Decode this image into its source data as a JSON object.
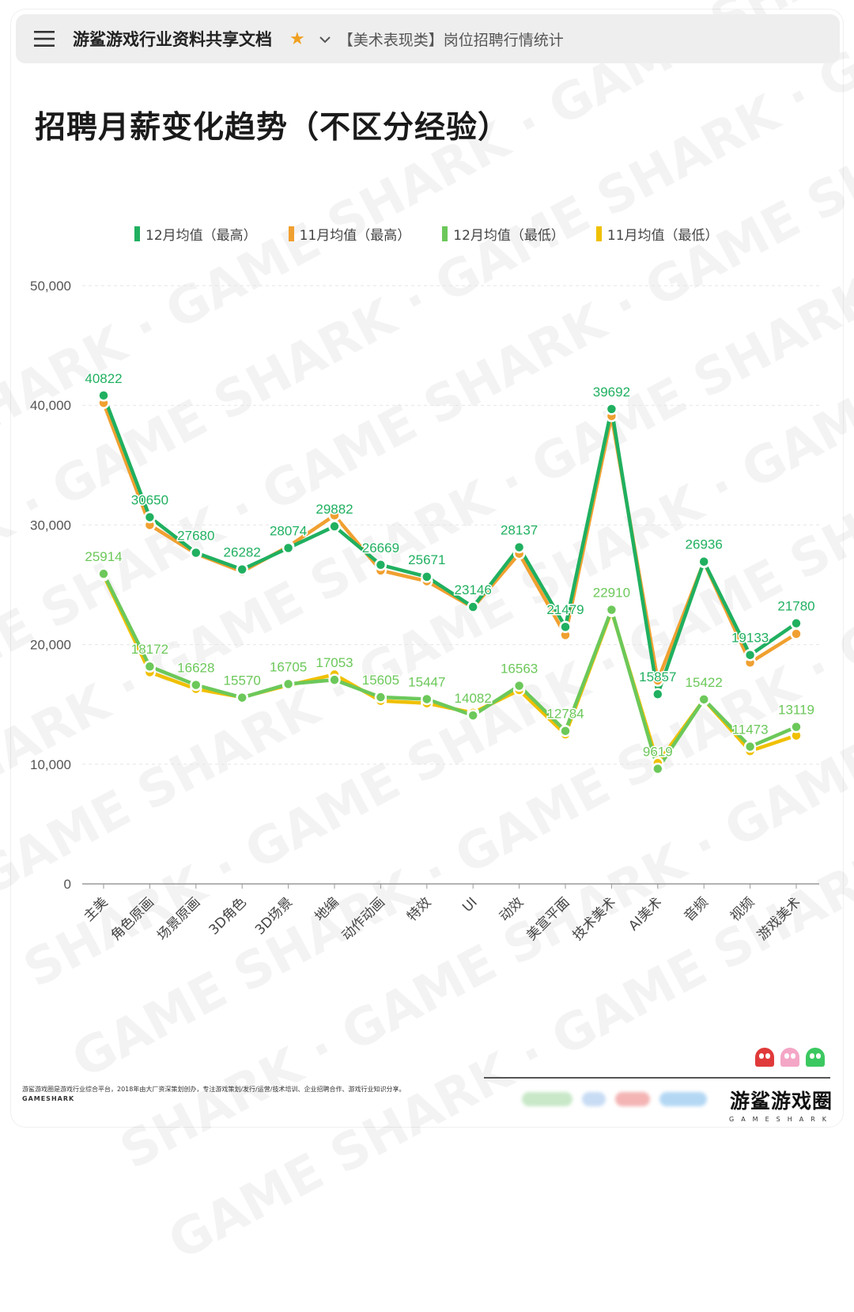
{
  "header": {
    "doc_title": "游鲨游戏行业资料共享文档",
    "breadcrumb": "【美术表现类】岗位招聘行情统计"
  },
  "page": {
    "title": "招聘月薪变化趋势（不区分经验）"
  },
  "colors": {
    "dec_high": "#20b060",
    "nov_high": "#f0a030",
    "dec_low": "#6cc85a",
    "nov_low": "#f0c000",
    "grid": "#e6e6e6",
    "axis": "#999999"
  },
  "chart_data": {
    "type": "line",
    "title": "招聘月薪变化趋势（不区分经验）",
    "xlabel": "",
    "ylabel": "",
    "ylim": [
      0,
      50000
    ],
    "y_ticks": [
      0,
      10000,
      20000,
      30000,
      40000,
      50000
    ],
    "y_tick_labels": [
      "0",
      "10,000",
      "20,000",
      "30,000",
      "40,000",
      "50,000"
    ],
    "legend_position": "top",
    "categories": [
      "主美",
      "角色原画",
      "场景原画",
      "3D角色",
      "3D场景",
      "地编",
      "动作动画",
      "特效",
      "UI",
      "动效",
      "美宣平面",
      "技术美术",
      "AI美术",
      "音频",
      "视频",
      "游戏美术"
    ],
    "series": [
      {
        "name": "12月均值（最高）",
        "color": "#20b060",
        "values": [
          40822,
          30650,
          27680,
          26282,
          28074,
          29882,
          26669,
          25671,
          23146,
          28137,
          21479,
          39692,
          15857,
          26936,
          19133,
          21780
        ],
        "labeled": true
      },
      {
        "name": "11月均值（最高）",
        "color": "#f0a030",
        "values": [
          40200,
          30000,
          27600,
          26100,
          28200,
          30800,
          26200,
          25300,
          23100,
          27600,
          20800,
          39100,
          17000,
          26900,
          18500,
          20900
        ],
        "labeled": false
      },
      {
        "name": "12月均值（最低）",
        "color": "#6cc85a",
        "values": [
          25914,
          18172,
          16628,
          15570,
          16705,
          17053,
          15605,
          15447,
          14082,
          16563,
          12784,
          22910,
          9619,
          15422,
          11473,
          13119
        ],
        "labeled": true
      },
      {
        "name": "11月均值（最低）",
        "color": "#f0c000",
        "values": [
          25800,
          17700,
          16300,
          15600,
          16600,
          17500,
          15300,
          15100,
          14300,
          16200,
          12500,
          22800,
          10100,
          15400,
          11100,
          12400
        ],
        "labeled": false
      }
    ]
  },
  "footer": {
    "about": "游鲨游戏圈是游戏行业综合平台，2018年由大厂资深策划创办，专注游戏策划/发行/运营/技术培训、企业招聘合作、游戏行业知识分享。",
    "about_sub": "GAMESHARK",
    "brand_name": "游鲨游戏圈",
    "brand_sub": "GAMESHARK"
  }
}
